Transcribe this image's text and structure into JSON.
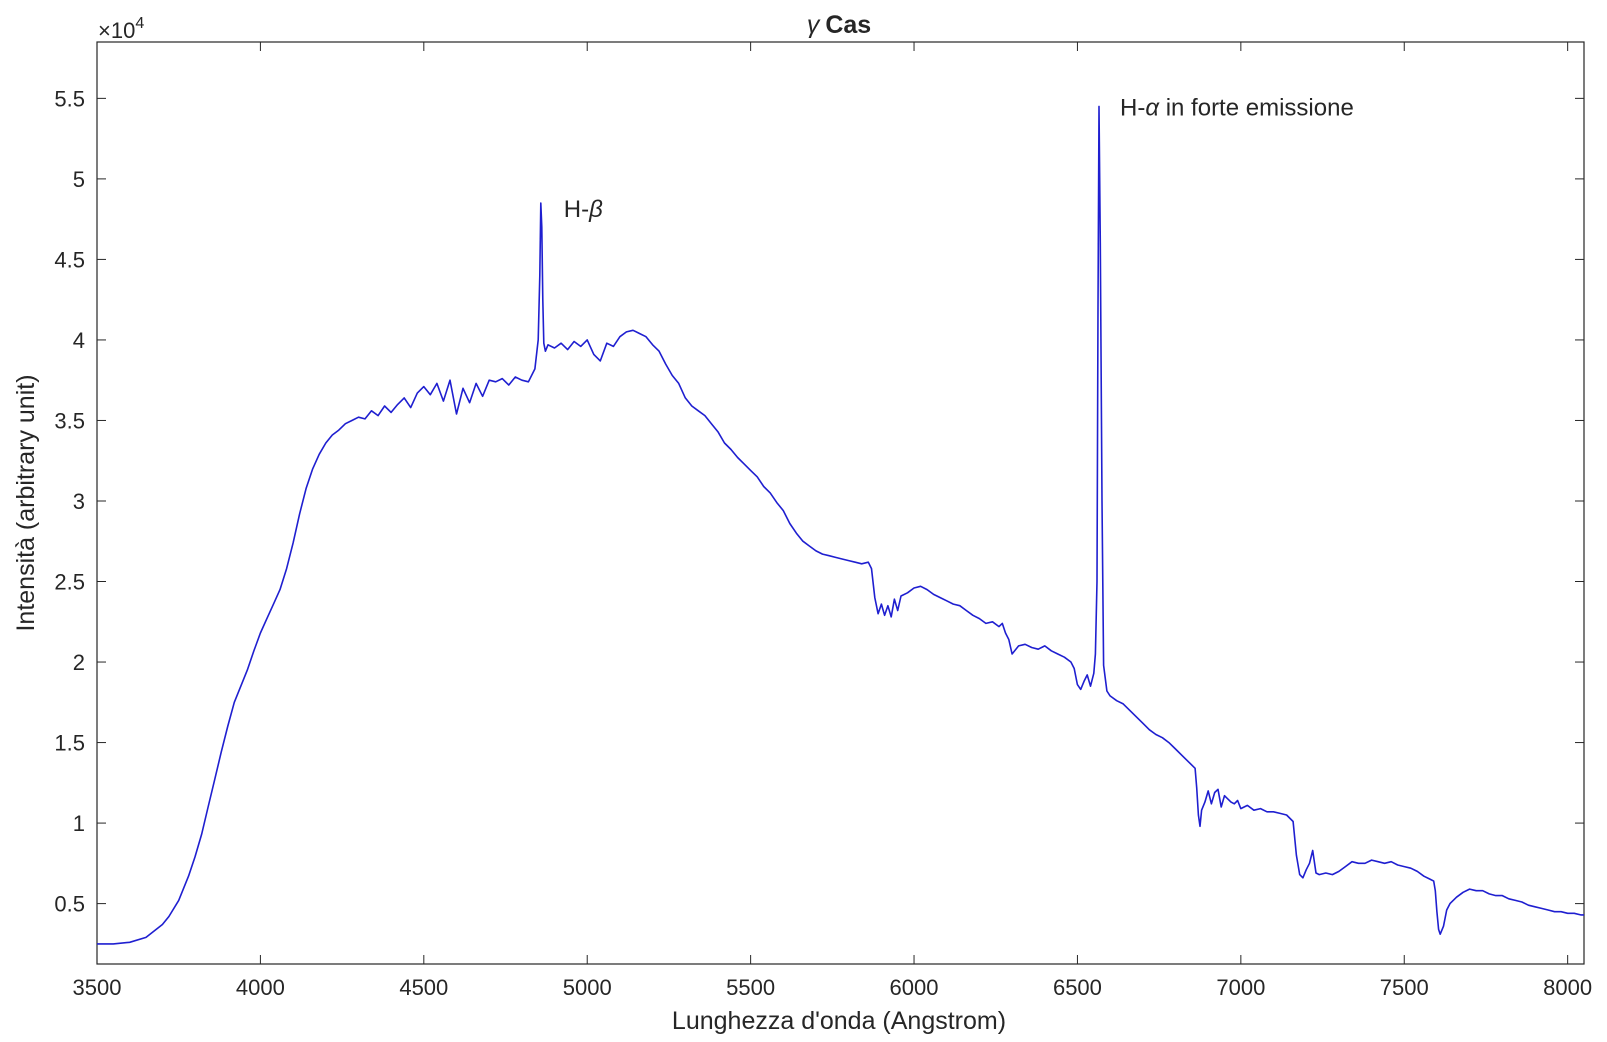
{
  "chart_data": {
    "type": "line",
    "title": {
      "symbol": "γ",
      "name": "Cas"
    },
    "xlabel": "Lunghezza d'onda (Angstrom)",
    "ylabel": "Intensità (arbitrary unit)",
    "y_exponent_label": "×10",
    "y_exponent_power": "4",
    "xlim": [
      3500,
      8050
    ],
    "ylim": [
      1250,
      58500
    ],
    "x_ticks": [
      3500,
      4000,
      4500,
      5000,
      5500,
      6000,
      6500,
      7000,
      7500,
      8000
    ],
    "x_tick_labels": [
      "3500",
      "4000",
      "4500",
      "5000",
      "5500",
      "6000",
      "6500",
      "7000",
      "7500",
      "8000"
    ],
    "y_ticks": [
      5000,
      10000,
      15000,
      20000,
      25000,
      30000,
      35000,
      40000,
      45000,
      50000,
      55000
    ],
    "y_tick_labels": [
      "0.5",
      "1",
      "1.5",
      "2",
      "2.5",
      "3",
      "3.5",
      "4",
      "4.5",
      "5",
      "5.5"
    ],
    "grid": false,
    "line_color": "#1f1fd0",
    "annotations": [
      {
        "text": "H-",
        "greek": "β",
        "x": 4861,
        "y": 48500
      },
      {
        "text": "H-",
        "greek": "α",
        "suffix": " in forte emissione",
        "x": 6563,
        "y": 54800
      }
    ],
    "series": [
      {
        "x": [
          3500,
          3550,
          3600,
          3650,
          3700,
          3720,
          3750,
          3780,
          3800,
          3820,
          3840,
          3860,
          3880,
          3900,
          3920,
          3940,
          3960,
          3980,
          4000,
          4020,
          4040,
          4060,
          4080,
          4100,
          4120,
          4140,
          4160,
          4180,
          4200,
          4220,
          4240,
          4260,
          4280,
          4300,
          4320,
          4340,
          4360,
          4380,
          4400,
          4420,
          4440,
          4460,
          4480,
          4500,
          4520,
          4540,
          4560,
          4580,
          4600,
          4620,
          4640,
          4660,
          4680,
          4700,
          4720,
          4740,
          4760,
          4780,
          4800,
          4820,
          4840,
          4850,
          4855,
          4858,
          4861,
          4864,
          4867,
          4872,
          4880,
          4900,
          4920,
          4940,
          4960,
          4980,
          5000,
          5020,
          5040,
          5060,
          5080,
          5100,
          5120,
          5140,
          5160,
          5180,
          5200,
          5220,
          5240,
          5260,
          5280,
          5300,
          5320,
          5340,
          5360,
          5380,
          5400,
          5420,
          5440,
          5460,
          5480,
          5500,
          5520,
          5540,
          5560,
          5580,
          5600,
          5620,
          5640,
          5660,
          5680,
          5700,
          5720,
          5740,
          5760,
          5780,
          5800,
          5820,
          5840,
          5860,
          5870,
          5880,
          5890,
          5900,
          5910,
          5920,
          5930,
          5940,
          5950,
          5960,
          5980,
          6000,
          6020,
          6040,
          6060,
          6080,
          6100,
          6120,
          6140,
          6160,
          6180,
          6200,
          6220,
          6240,
          6260,
          6270,
          6280,
          6290,
          6300,
          6320,
          6340,
          6360,
          6380,
          6400,
          6420,
          6440,
          6460,
          6480,
          6490,
          6500,
          6510,
          6520,
          6530,
          6540,
          6550,
          6555,
          6560,
          6563,
          6566,
          6570,
          6575,
          6580,
          6590,
          6600,
          6620,
          6640,
          6660,
          6680,
          6700,
          6720,
          6740,
          6760,
          6780,
          6800,
          6820,
          6840,
          6860,
          6865,
          6870,
          6875,
          6880,
          6890,
          6900,
          6910,
          6920,
          6930,
          6940,
          6950,
          6960,
          6970,
          6980,
          6990,
          7000,
          7020,
          7040,
          7060,
          7080,
          7100,
          7120,
          7140,
          7160,
          7170,
          7180,
          7190,
          7200,
          7210,
          7220,
          7230,
          7240,
          7260,
          7280,
          7300,
          7320,
          7340,
          7360,
          7380,
          7400,
          7420,
          7440,
          7460,
          7480,
          7500,
          7520,
          7540,
          7560,
          7580,
          7590,
          7595,
          7600,
          7605,
          7610,
          7620,
          7630,
          7640,
          7660,
          7680,
          7700,
          7720,
          7740,
          7760,
          7780,
          7800,
          7820,
          7840,
          7860,
          7880,
          7900,
          7920,
          7940,
          7960,
          7980,
          8000,
          8020,
          8040,
          8050
        ],
        "y": [
          2500,
          2500,
          2600,
          2900,
          3700,
          4200,
          5200,
          6700,
          7900,
          9300,
          11000,
          12700,
          14400,
          16000,
          17500,
          18500,
          19500,
          20700,
          21800,
          22700,
          23600,
          24500,
          25800,
          27400,
          29200,
          30800,
          32000,
          32900,
          33600,
          34100,
          34400,
          34800,
          35000,
          35200,
          35100,
          35600,
          35300,
          35900,
          35500,
          36000,
          36400,
          35800,
          36700,
          37100,
          36600,
          37300,
          36200,
          37500,
          35400,
          37000,
          36100,
          37300,
          36500,
          37500,
          37400,
          37600,
          37200,
          37700,
          37500,
          37400,
          38200,
          40000,
          44000,
          48500,
          47000,
          42500,
          39800,
          39300,
          39700,
          39500,
          39800,
          39400,
          39900,
          39600,
          40000,
          39100,
          38700,
          39800,
          39600,
          40200,
          40500,
          40600,
          40400,
          40200,
          39700,
          39300,
          38500,
          37800,
          37300,
          36400,
          35900,
          35600,
          35300,
          34800,
          34300,
          33600,
          33200,
          32700,
          32300,
          31900,
          31500,
          30900,
          30500,
          29900,
          29400,
          28600,
          28000,
          27500,
          27200,
          26900,
          26700,
          26600,
          26500,
          26400,
          26300,
          26200,
          26100,
          26200,
          25800,
          24000,
          23000,
          23600,
          22900,
          23500,
          22800,
          23900,
          23200,
          24100,
          24300,
          24600,
          24700,
          24500,
          24200,
          24000,
          23800,
          23600,
          23500,
          23200,
          22900,
          22700,
          22400,
          22500,
          22200,
          22400,
          21800,
          21400,
          20500,
          21000,
          21100,
          20900,
          20800,
          21000,
          20700,
          20500,
          20300,
          20000,
          19600,
          18600,
          18300,
          18800,
          19200,
          18500,
          19300,
          20500,
          25000,
          42000,
          54500,
          46000,
          30000,
          19800,
          18200,
          17900,
          17600,
          17400,
          17000,
          16600,
          16200,
          15800,
          15500,
          15300,
          15000,
          14600,
          14200,
          13800,
          13400,
          12200,
          10500,
          9800,
          10800,
          11300,
          12000,
          11200,
          11900,
          12100,
          11000,
          11700,
          11500,
          11300,
          11200,
          11400,
          10900,
          11100,
          10800,
          10900,
          10700,
          10700,
          10600,
          10500,
          10100,
          8000,
          6800,
          6600,
          7100,
          7500,
          8300,
          6900,
          6800,
          6900,
          6800,
          7000,
          7300,
          7600,
          7500,
          7500,
          7700,
          7600,
          7500,
          7600,
          7400,
          7300,
          7200,
          7000,
          6700,
          6500,
          6400,
          5800,
          4500,
          3400,
          3100,
          3600,
          4600,
          5000,
          5400,
          5700,
          5900,
          5800,
          5800,
          5600,
          5500,
          5500,
          5300,
          5200,
          5100,
          4900,
          4800,
          4700,
          4600,
          4500,
          4500,
          4400,
          4400,
          4300,
          4300
        ]
      }
    ]
  }
}
